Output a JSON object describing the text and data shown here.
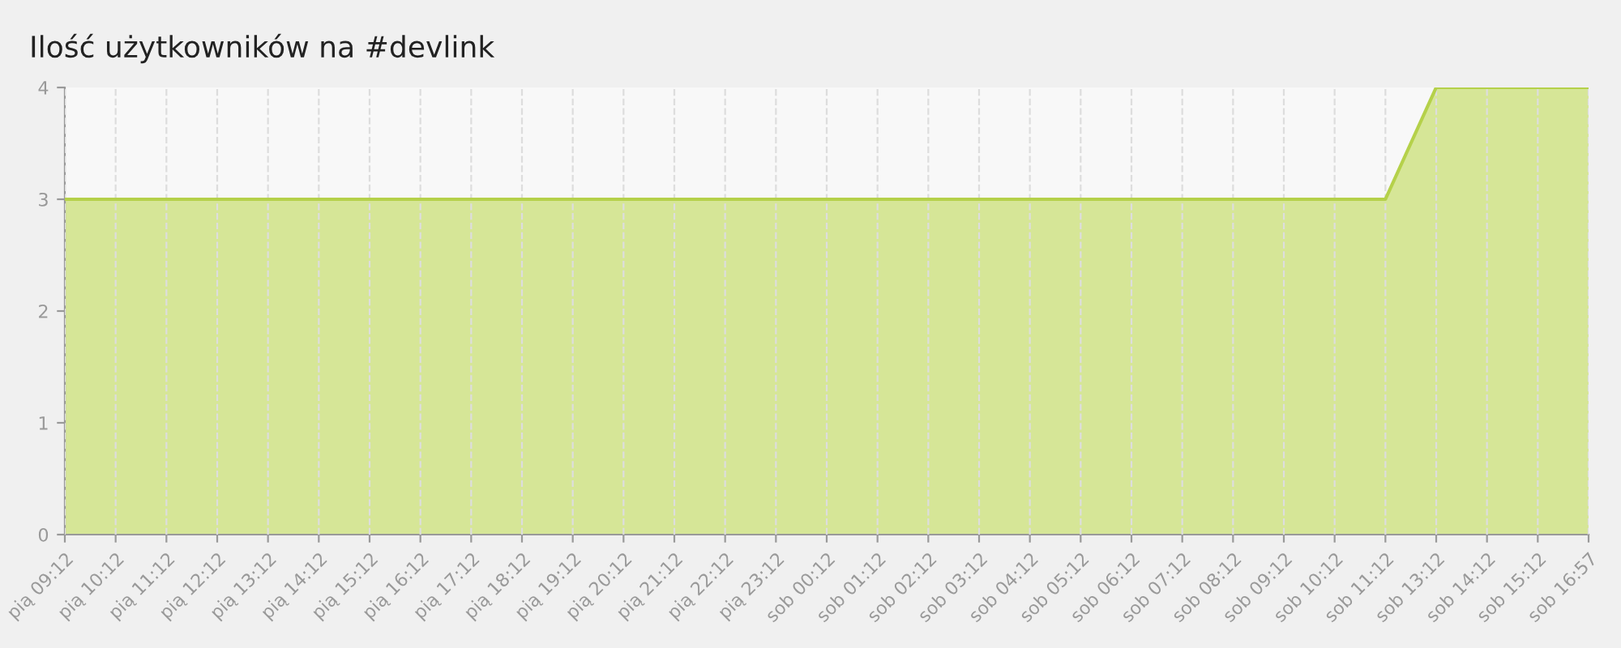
{
  "chart_data": {
    "type": "area",
    "title": "Ilość użytkowników na #devlink",
    "categories": [
      "pią 09:12",
      "pią 10:12",
      "pią 11:12",
      "pią 12:12",
      "pią 13:12",
      "pią 14:12",
      "pią 15:12",
      "pią 16:12",
      "pią 17:12",
      "pią 18:12",
      "pią 19:12",
      "pią 20:12",
      "pią 21:12",
      "pią 22:12",
      "pią 23:12",
      "sob 00:12",
      "sob 01:12",
      "sob 02:12",
      "sob 03:12",
      "sob 04:12",
      "sob 05:12",
      "sob 06:12",
      "sob 07:12",
      "sob 08:12",
      "sob 09:12",
      "sob 10:12",
      "sob 11:12",
      "sob 13:12",
      "sob 14:12",
      "sob 15:12",
      "sob 16:57"
    ],
    "series": [
      {
        "color": "#d2e38c",
        "values": [
          3,
          3,
          3,
          3,
          3,
          3,
          3,
          3,
          3,
          3,
          3,
          3,
          3,
          3,
          3,
          3,
          3,
          3,
          3,
          3,
          3,
          3,
          3,
          3,
          3,
          3,
          3,
          4,
          4,
          4,
          4
        ]
      }
    ],
    "ylim": [
      0,
      4
    ],
    "yticks": [
      0,
      1,
      2,
      3,
      4
    ],
    "grid": "x"
  }
}
